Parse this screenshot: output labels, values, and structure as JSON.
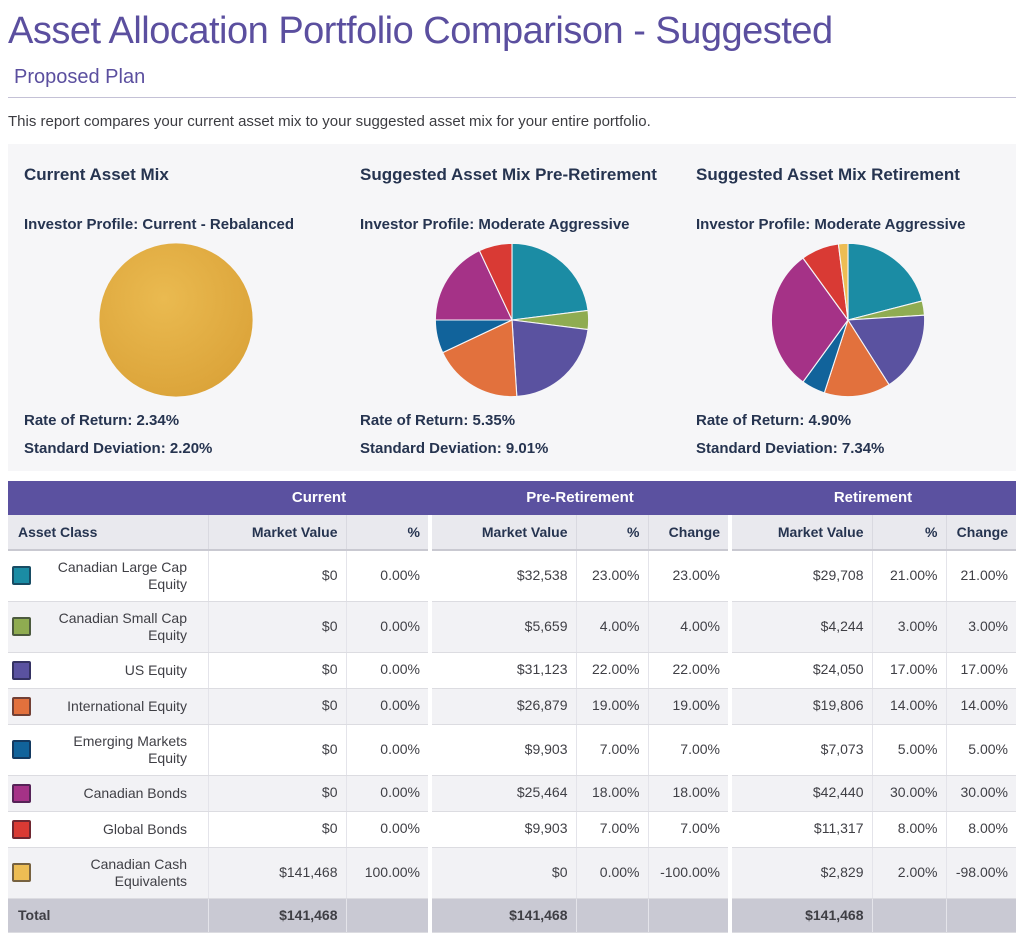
{
  "page": {
    "title": "Asset Allocation Portfolio Comparison - Suggested",
    "subtitle": "Proposed Plan",
    "description": "This report compares your current asset mix to your suggested asset mix for your entire portfolio."
  },
  "panels": [
    {
      "heading": "Current Asset Mix",
      "investor_profile": "Investor Profile: Current - Rebalanced",
      "rate_of_return": "Rate of Return: 2.34%",
      "standard_deviation": "Standard Deviation: 2.20%"
    },
    {
      "heading": "Suggested Asset Mix Pre-Retirement",
      "investor_profile": "Investor Profile: Moderate Aggressive",
      "rate_of_return": "Rate of Return: 5.35%",
      "standard_deviation": "Standard Deviation: 9.01%"
    },
    {
      "heading": "Suggested Asset Mix Retirement",
      "investor_profile": "Investor Profile: Moderate Aggressive",
      "rate_of_return": "Rate of Return: 4.90%",
      "standard_deviation": "Standard Deviation: 7.34%"
    }
  ],
  "chart_data": [
    {
      "type": "pie",
      "title": "Current Asset Mix",
      "slices": [
        {
          "label": "Canadian Cash Equivalents",
          "value": 100,
          "color": "#DFA93F"
        }
      ]
    },
    {
      "type": "pie",
      "title": "Suggested Asset Mix Pre-Retirement",
      "slices": [
        {
          "label": "Canadian Large Cap Equity",
          "value": 23,
          "color": "#1B8CA4"
        },
        {
          "label": "Canadian Small Cap Equity",
          "value": 4,
          "color": "#8FAC51"
        },
        {
          "label": "US Equity",
          "value": 22,
          "color": "#5A52A0"
        },
        {
          "label": "International Equity",
          "value": 19,
          "color": "#E2713D"
        },
        {
          "label": "Emerging Markets Equity",
          "value": 7,
          "color": "#11639B"
        },
        {
          "label": "Canadian Bonds",
          "value": 18,
          "color": "#A53287"
        },
        {
          "label": "Global Bonds",
          "value": 7,
          "color": "#D93A34"
        }
      ]
    },
    {
      "type": "pie",
      "title": "Suggested Asset Mix Retirement",
      "slices": [
        {
          "label": "Canadian Large Cap Equity",
          "value": 21,
          "color": "#1B8CA4"
        },
        {
          "label": "Canadian Small Cap Equity",
          "value": 3,
          "color": "#8FAC51"
        },
        {
          "label": "US Equity",
          "value": 17,
          "color": "#5A52A0"
        },
        {
          "label": "International Equity",
          "value": 14,
          "color": "#E2713D"
        },
        {
          "label": "Emerging Markets Equity",
          "value": 5,
          "color": "#11639B"
        },
        {
          "label": "Canadian Bonds",
          "value": 30,
          "color": "#A53287"
        },
        {
          "label": "Global Bonds",
          "value": 8,
          "color": "#D93A34"
        },
        {
          "label": "Canadian Cash Equivalents",
          "value": 2,
          "color": "#EDBD54"
        }
      ]
    }
  ],
  "table": {
    "group_headers": [
      "Current",
      "Pre-Retirement",
      "Retirement"
    ],
    "columns": [
      "Asset Class",
      "Market Value",
      "%",
      "Market Value",
      "%",
      "Change",
      "Market Value",
      "%",
      "Change"
    ],
    "rows": [
      {
        "label": "Canadian Large Cap Equity",
        "color": "#1B8CA4",
        "cells": [
          "$0",
          "0.00%",
          "$32,538",
          "23.00%",
          "23.00%",
          "$29,708",
          "21.00%",
          "21.00%"
        ]
      },
      {
        "label": "Canadian Small Cap Equity",
        "color": "#8FAC51",
        "cells": [
          "$0",
          "0.00%",
          "$5,659",
          "4.00%",
          "4.00%",
          "$4,244",
          "3.00%",
          "3.00%"
        ]
      },
      {
        "label": "US Equity",
        "color": "#5A52A0",
        "cells": [
          "$0",
          "0.00%",
          "$31,123",
          "22.00%",
          "22.00%",
          "$24,050",
          "17.00%",
          "17.00%"
        ]
      },
      {
        "label": "International Equity",
        "color": "#E2713D",
        "cells": [
          "$0",
          "0.00%",
          "$26,879",
          "19.00%",
          "19.00%",
          "$19,806",
          "14.00%",
          "14.00%"
        ]
      },
      {
        "label": "Emerging Markets Equity",
        "color": "#11639B",
        "cells": [
          "$0",
          "0.00%",
          "$9,903",
          "7.00%",
          "7.00%",
          "$7,073",
          "5.00%",
          "5.00%"
        ]
      },
      {
        "label": "Canadian Bonds",
        "color": "#A53287",
        "cells": [
          "$0",
          "0.00%",
          "$25,464",
          "18.00%",
          "18.00%",
          "$42,440",
          "30.00%",
          "30.00%"
        ]
      },
      {
        "label": "Global Bonds",
        "color": "#D93A34",
        "cells": [
          "$0",
          "0.00%",
          "$9,903",
          "7.00%",
          "7.00%",
          "$11,317",
          "8.00%",
          "8.00%"
        ]
      },
      {
        "label": "Canadian Cash Equivalents",
        "color": "#EDBD54",
        "cells": [
          "$141,468",
          "100.00%",
          "$0",
          "0.00%",
          "-100.00%",
          "$2,829",
          "2.00%",
          "-98.00%"
        ]
      }
    ],
    "total": {
      "label": "Total",
      "current_mv": "$141,468",
      "pre_mv": "$141,468",
      "ret_mv": "$141,468"
    }
  },
  "colors": {
    "accent_purple": "#5B51A0",
    "title_purple": "#5B4F9F",
    "heading_navy": "#263450",
    "card_background": "#F6F6F8",
    "header_row_background": "#E9E9EE",
    "total_row_background": "#C9C9D3",
    "current_pie_gold": "#DFA93F"
  }
}
